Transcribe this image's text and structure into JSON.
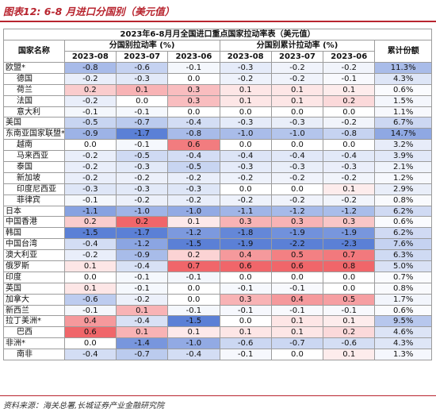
{
  "figure_title": "图表12: 6-8 月进口分国别（美元值）",
  "table_title": "2023年6-8月月全国进口重点国家拉动率表（美元值）",
  "headers": {
    "country": "国家名称",
    "group_monthly": "分国别拉动率 (%)",
    "group_cumulative": "分国别累计拉动率 (%)",
    "share": "累计份额",
    "months": [
      "2023-08",
      "2023-07",
      "2023-06"
    ]
  },
  "rows": [
    {
      "name": "欧盟*",
      "sub": false,
      "m": [
        "-0.8",
        "-0.6",
        "-0.1"
      ],
      "c": [
        "-0.3",
        "-0.2",
        "-0.2"
      ],
      "share": "11.3%"
    },
    {
      "name": "德国",
      "sub": true,
      "m": [
        "-0.2",
        "-0.3",
        "0.0"
      ],
      "c": [
        "-0.2",
        "-0.2",
        "-0.1"
      ],
      "share": "4.3%"
    },
    {
      "name": "荷兰",
      "sub": true,
      "m": [
        "0.2",
        "0.1",
        "0.3"
      ],
      "c": [
        "0.1",
        "0.1",
        "0.1"
      ],
      "share": "0.6%"
    },
    {
      "name": "法国",
      "sub": true,
      "m": [
        "-0.2",
        "0.0",
        "0.3"
      ],
      "c": [
        "0.1",
        "0.1",
        "0.2"
      ],
      "share": "1.5%"
    },
    {
      "name": "意大利",
      "sub": true,
      "m": [
        "-0.1",
        "-0.1",
        "0.0"
      ],
      "c": [
        "0.0",
        "0.0",
        "0.0"
      ],
      "share": "1.1%"
    },
    {
      "name": "美国",
      "sub": false,
      "m": [
        "-0.5",
        "-0.7",
        "-0.4"
      ],
      "c": [
        "-0.3",
        "-0.3",
        "-0.2"
      ],
      "share": "6.7%"
    },
    {
      "name": "东南亚国家联盟*",
      "sub": false,
      "m": [
        "-0.9",
        "-1.7",
        "-0.8"
      ],
      "c": [
        "-1.0",
        "-1.0",
        "-0.8"
      ],
      "share": "14.7%"
    },
    {
      "name": "越南",
      "sub": true,
      "m": [
        "0.0",
        "-0.1",
        "0.6"
      ],
      "c": [
        "0.0",
        "0.0",
        "0.0"
      ],
      "share": "3.2%"
    },
    {
      "name": "马来西亚",
      "sub": true,
      "m": [
        "-0.2",
        "-0.5",
        "-0.4"
      ],
      "c": [
        "-0.4",
        "-0.4",
        "-0.4"
      ],
      "share": "3.9%"
    },
    {
      "name": "泰国",
      "sub": true,
      "m": [
        "-0.2",
        "-0.3",
        "-0.5"
      ],
      "c": [
        "-0.3",
        "-0.3",
        "-0.3"
      ],
      "share": "2.1%"
    },
    {
      "name": "新加坡",
      "sub": true,
      "m": [
        "-0.2",
        "-0.2",
        "-0.2"
      ],
      "c": [
        "-0.2",
        "-0.2",
        "-0.2"
      ],
      "share": "1.2%"
    },
    {
      "name": "印度尼西亚",
      "sub": true,
      "m": [
        "-0.3",
        "-0.3",
        "-0.3"
      ],
      "c": [
        "0.0",
        "0.0",
        "0.1"
      ],
      "share": "2.9%"
    },
    {
      "name": "菲律宾",
      "sub": true,
      "m": [
        "-0.1",
        "-0.2",
        "-0.2"
      ],
      "c": [
        "-0.2",
        "-0.2",
        "-0.2"
      ],
      "share": "0.8%"
    },
    {
      "name": "日本",
      "sub": false,
      "m": [
        "-1.1",
        "-1.0",
        "-1.0"
      ],
      "c": [
        "-1.1",
        "-1.2",
        "-1.2"
      ],
      "share": "6.2%"
    },
    {
      "name": "中国香港",
      "sub": false,
      "m": [
        "0.2",
        "0.2",
        "0.1"
      ],
      "c": [
        "0.3",
        "0.3",
        "0.3"
      ],
      "share": "0.6%"
    },
    {
      "name": "韩国",
      "sub": false,
      "m": [
        "-1.5",
        "-1.7",
        "-1.2"
      ],
      "c": [
        "-1.8",
        "-1.9",
        "-1.9"
      ],
      "share": "6.2%"
    },
    {
      "name": "中国台湾",
      "sub": false,
      "m": [
        "-0.4",
        "-1.2",
        "-1.5"
      ],
      "c": [
        "-1.9",
        "-2.2",
        "-2.3"
      ],
      "share": "7.6%"
    },
    {
      "name": "澳大利亚",
      "sub": false,
      "m": [
        "-0.2",
        "-0.9",
        "0.2"
      ],
      "c": [
        "0.4",
        "0.5",
        "0.7"
      ],
      "share": "6.3%"
    },
    {
      "name": "俄罗斯",
      "sub": false,
      "m": [
        "0.1",
        "-0.4",
        "0.7"
      ],
      "c": [
        "0.6",
        "0.6",
        "0.8"
      ],
      "share": "5.0%"
    },
    {
      "name": "印度",
      "sub": false,
      "m": [
        "0.0",
        "-0.1",
        "-0.1"
      ],
      "c": [
        "0.0",
        "0.0",
        "0.0"
      ],
      "share": "0.7%"
    },
    {
      "name": "英国",
      "sub": false,
      "m": [
        "0.1",
        "-0.1",
        "0.0"
      ],
      "c": [
        "-0.1",
        "-0.1",
        "0.0"
      ],
      "share": "0.8%"
    },
    {
      "name": "加拿大",
      "sub": false,
      "m": [
        "-0.6",
        "-0.2",
        "0.0"
      ],
      "c": [
        "0.3",
        "0.4",
        "0.5"
      ],
      "share": "1.7%"
    },
    {
      "name": "新西兰",
      "sub": false,
      "m": [
        "-0.1",
        "0.1",
        "-0.1"
      ],
      "c": [
        "-0.1",
        "-0.1",
        "-0.1"
      ],
      "share": "0.6%"
    },
    {
      "name": "拉丁美洲*",
      "sub": false,
      "m": [
        "0.4",
        "-0.4",
        "-1.5"
      ],
      "c": [
        "0.0",
        "0.1",
        "0.1"
      ],
      "share": "9.5%"
    },
    {
      "name": "巴西",
      "sub": true,
      "m": [
        "0.6",
        "0.1",
        "0.1"
      ],
      "c": [
        "0.1",
        "0.1",
        "0.2"
      ],
      "share": "4.6%"
    },
    {
      "name": "非洲*",
      "sub": false,
      "m": [
        "0.0",
        "-1.4",
        "-1.0"
      ],
      "c": [
        "-0.6",
        "-0.7",
        "-0.6"
      ],
      "share": "4.3%"
    },
    {
      "name": "南非",
      "sub": true,
      "m": [
        "-0.4",
        "-0.7",
        "-0.4"
      ],
      "c": [
        "-0.1",
        "0.0",
        "0.1"
      ],
      "share": "1.3%"
    }
  ],
  "source": "资料来源：海关总署,长城证券产业金融研究院",
  "colors": {
    "accent_red": "#b8252f",
    "strong_blue": "#5b80d6",
    "strong_red": "#f0666a",
    "neutral": "#ffffff"
  }
}
